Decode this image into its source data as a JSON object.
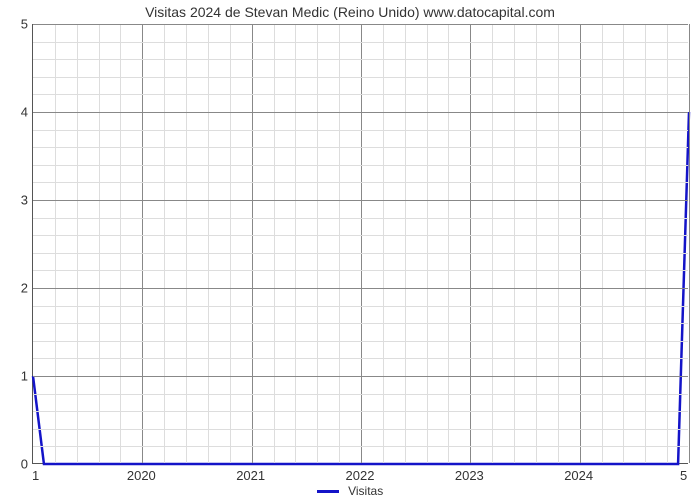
{
  "chart": {
    "type": "line",
    "title": "Visitas 2024 de Stevan Medic (Reino Unido) www.datocapital.com",
    "title_fontsize": 14,
    "background_color": "#ffffff",
    "plot_border_color": "#555555",
    "grid_major_color": "#888888",
    "grid_minor_color": "#dddddd",
    "line_color": "#1414c8",
    "line_width": 2.5,
    "x_axis": {
      "min": 2019,
      "max": 2025,
      "major_ticks": [
        2020,
        2021,
        2022,
        2023,
        2024
      ],
      "minor_per_major": 4,
      "start_label": "1",
      "end_label": "5"
    },
    "y_axis": {
      "min": 0,
      "max": 5,
      "major_ticks": [
        0,
        1,
        2,
        3,
        4,
        5
      ],
      "minor_per_major": 4
    },
    "data_points": [
      {
        "x": 2019.0,
        "y": 1.0
      },
      {
        "x": 2019.1,
        "y": 0.0
      },
      {
        "x": 2024.9,
        "y": 0.0
      },
      {
        "x": 2025.0,
        "y": 4.0
      }
    ],
    "legend": {
      "label": "Visitas",
      "swatch_color": "#1414c8"
    }
  }
}
